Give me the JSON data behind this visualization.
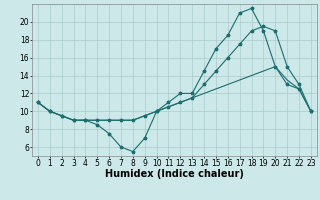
{
  "background_color": "#cce8e8",
  "grid_color": "#aacccc",
  "line_color": "#1a6e6e",
  "marker": "*",
  "xlabel": "Humidex (Indice chaleur)",
  "xlabel_fontsize": 7,
  "tick_fontsize": 5.5,
  "ylim": [
    5,
    22
  ],
  "xlim": [
    -0.5,
    23.5
  ],
  "yticks": [
    6,
    8,
    10,
    12,
    14,
    16,
    18,
    20
  ],
  "xticks": [
    0,
    1,
    2,
    3,
    4,
    5,
    6,
    7,
    8,
    9,
    10,
    11,
    12,
    13,
    14,
    15,
    16,
    17,
    18,
    19,
    20,
    21,
    22,
    23
  ],
  "line1_x": [
    0,
    1,
    2,
    3,
    4,
    5,
    6,
    7,
    8,
    9,
    10,
    11,
    12,
    13,
    14,
    15,
    16,
    17,
    18,
    19,
    20,
    21,
    22,
    23
  ],
  "line1_y": [
    11,
    10,
    9.5,
    9,
    9,
    8.5,
    7.5,
    6,
    5.5,
    7,
    10,
    11,
    12,
    12,
    14.5,
    17,
    18.5,
    21,
    21.5,
    19,
    15,
    13,
    12.5,
    10
  ],
  "line2_x": [
    0,
    1,
    2,
    3,
    4,
    5,
    6,
    7,
    8,
    9,
    10,
    11,
    12,
    13,
    14,
    15,
    16,
    17,
    18,
    19,
    20,
    21,
    22,
    23
  ],
  "line2_y": [
    11,
    10,
    9.5,
    9,
    9,
    9,
    9,
    9,
    9,
    9.5,
    10,
    10.5,
    11,
    11.5,
    12,
    12.5,
    13,
    13.5,
    14,
    14.5,
    15,
    13.5,
    12.5,
    10
  ],
  "line3_x": [
    0,
    1,
    2,
    3,
    4,
    5,
    6,
    7,
    8,
    9,
    10,
    11,
    12,
    13,
    14,
    15,
    16,
    17,
    18,
    19,
    20,
    21,
    22,
    23
  ],
  "line3_y": [
    11,
    10,
    9.5,
    9,
    9,
    9,
    9,
    9,
    9,
    9.5,
    10,
    10.5,
    11,
    11.5,
    13,
    14.5,
    16,
    17.5,
    19,
    19.5,
    19,
    15,
    13,
    10
  ]
}
